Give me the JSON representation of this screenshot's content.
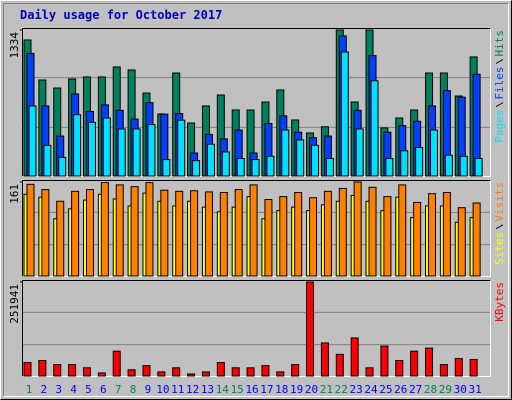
{
  "chart_data": [
    {
      "type": "bar",
      "title": "Daily usage for October 2017",
      "ylim": [
        0,
        1334
      ],
      "yticks": [
        1334
      ],
      "grid": true,
      "series": [
        {
          "name": "Hits",
          "color": "#00805c",
          "values": [
            1243,
            877,
            804,
            887,
            905,
            905,
            996,
            969,
            758,
            567,
            941,
            484,
            640,
            740,
            603,
            603,
            676,
            786,
            512,
            393,
            450,
            1334,
            676,
            1334,
            439,
            530,
            603,
            941,
            941,
            731,
            1088
          ]
        },
        {
          "name": "Files",
          "color": "#0040ff",
          "values": [
            1120,
            640,
            365,
            750,
            590,
            650,
            600,
            520,
            670,
            565,
            570,
            210,
            380,
            340,
            420,
            210,
            480,
            550,
            400,
            350,
            365,
            1280,
            600,
            1100,
            400,
            460,
            500,
            640,
            780,
            720,
            930
          ]
        },
        {
          "name": "Pages",
          "color": "#00e0ff",
          "values": [
            640,
            280,
            170,
            560,
            490,
            530,
            430,
            430,
            470,
            150,
            510,
            140,
            290,
            220,
            160,
            150,
            180,
            420,
            330,
            280,
            160,
            1133,
            430,
            870,
            160,
            230,
            260,
            420,
            190,
            180,
            160
          ]
        }
      ]
    },
    {
      "type": "bar",
      "ylim": [
        0,
        161
      ],
      "yticks": [
        161
      ],
      "grid": true,
      "series": [
        {
          "name": "Visits",
          "color": "#ff8000",
          "values": [
            157,
            148,
            128,
            145,
            148,
            160,
            156,
            153,
            160,
            147,
            145,
            146,
            144,
            143,
            148,
            156,
            131,
            136,
            143,
            134,
            145,
            150,
            161,
            152,
            136,
            156,
            126,
            141,
            143,
            117,
            125
          ]
        },
        {
          "name": "Sites",
          "color": "#ffff00",
          "values": [
            140,
            135,
            98,
            115,
            130,
            140,
            132,
            120,
            142,
            128,
            120,
            128,
            118,
            110,
            118,
            136,
            98,
            112,
            118,
            112,
            122,
            128,
            138,
            128,
            112,
            135,
            100,
            120,
            120,
            92,
            100
          ]
        }
      ]
    },
    {
      "type": "bar",
      "ylim": [
        0,
        251941
      ],
      "yticks": [
        251941
      ],
      "grid": true,
      "categories": [
        "1",
        "2",
        "3",
        "4",
        "5",
        "6",
        "7",
        "8",
        "9",
        "10",
        "11",
        "12",
        "13",
        "14",
        "15",
        "16",
        "17",
        "18",
        "19",
        "20",
        "21",
        "22",
        "23",
        "24",
        "25",
        "26",
        "27",
        "28",
        "29",
        "30",
        "31"
      ],
      "category_colors": [
        "#00805c",
        "#0000ff",
        "#0000ff",
        "#0000ff",
        "#0000ff",
        "#0000ff",
        "#00805c",
        "#00805c",
        "#0000ff",
        "#0000ff",
        "#0000ff",
        "#0000ff",
        "#0000ff",
        "#00805c",
        "#00805c",
        "#0000ff",
        "#0000ff",
        "#0000ff",
        "#0000ff",
        "#0000ff",
        "#00805c",
        "#00805c",
        "#0000ff",
        "#0000ff",
        "#0000ff",
        "#0000ff",
        "#0000ff",
        "#00805c",
        "#00805c",
        "#0000ff",
        "#0000ff"
      ],
      "series": [
        {
          "name": "KBytes",
          "color": "#ff0000",
          "values": [
            36000,
            41500,
            30500,
            30500,
            22000,
            8300,
            66500,
            16600,
            27700,
            11000,
            22000,
            5500,
            11000,
            36000,
            22000,
            22000,
            27700,
            11000,
            30500,
            251941,
            88600,
            58100,
            102000,
            22000,
            80300,
            41500,
            66500,
            74800,
            30500,
            47000,
            44300
          ]
        }
      ]
    }
  ]
}
